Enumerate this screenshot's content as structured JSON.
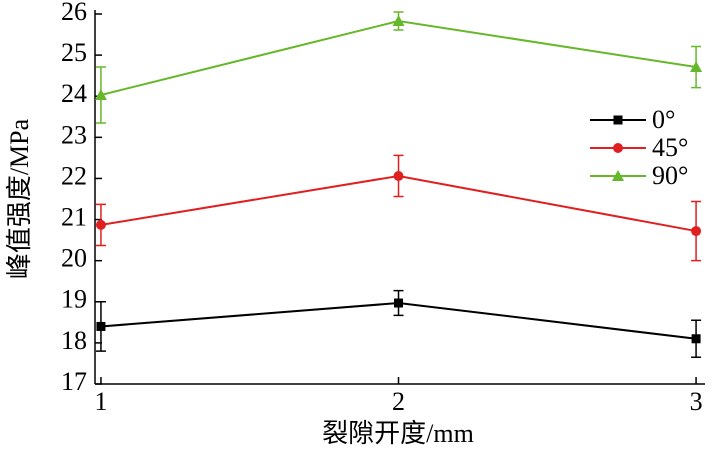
{
  "chart_data": {
    "type": "line",
    "x_label": "裂隙开度/mm",
    "y_label": "峰值强度/MPa",
    "x": [
      1,
      2,
      3
    ],
    "series": [
      {
        "name": "0°",
        "color": "#000000",
        "marker": "square",
        "values": [
          18.4,
          18.97,
          18.1
        ],
        "errors": [
          0.6,
          0.3,
          0.45
        ]
      },
      {
        "name": "45°",
        "color": "#e02020",
        "marker": "circle",
        "values": [
          20.87,
          22.06,
          20.72
        ],
        "errors": [
          0.5,
          0.5,
          0.72
        ]
      },
      {
        "name": "90°",
        "color": "#66b82a",
        "marker": "triangle",
        "values": [
          24.03,
          25.83,
          24.71
        ],
        "errors": [
          0.68,
          0.22,
          0.5
        ]
      }
    ],
    "xlim": [
      0.98,
      3.03
    ],
    "xticks": [
      1,
      2,
      3
    ],
    "ylim": [
      17,
      26
    ],
    "yticks": [
      17,
      18,
      19,
      20,
      21,
      22,
      23,
      24,
      25,
      26
    ],
    "legend": "right"
  }
}
